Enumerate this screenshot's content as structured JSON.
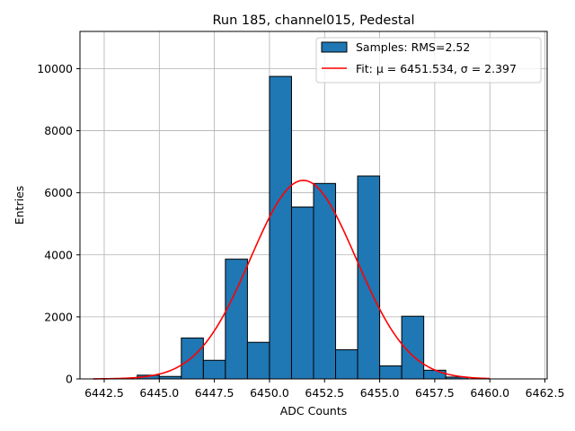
{
  "chart_data": {
    "type": "bar",
    "title": "Run 185, channel015, Pedestal",
    "xlabel": "ADC Counts",
    "ylabel": "Entries",
    "xlim": [
      6441.4,
      6462.6
    ],
    "ylim": [
      0,
      11200
    ],
    "grid": true,
    "legend_position": "top-right",
    "x_ticks": [
      6442.5,
      6445.0,
      6447.5,
      6450.0,
      6452.5,
      6455.0,
      6457.5,
      6460.0,
      6462.5
    ],
    "x_tick_labels": [
      "6442.5",
      "6445.0",
      "6447.5",
      "6450.0",
      "6452.5",
      "6455.0",
      "6457.5",
      "6460.0",
      "6462.5"
    ],
    "y_ticks": [
      0,
      2000,
      4000,
      6000,
      8000,
      10000
    ],
    "y_tick_labels": [
      "0",
      "2000",
      "4000",
      "6000",
      "8000",
      "10000"
    ],
    "bins": [
      {
        "left": 6444.0,
        "right": 6445.0,
        "value": 120
      },
      {
        "left": 6445.0,
        "right": 6446.0,
        "value": 80
      },
      {
        "left": 6446.0,
        "right": 6447.0,
        "value": 1320
      },
      {
        "left": 6447.0,
        "right": 6448.0,
        "value": 600
      },
      {
        "left": 6448.0,
        "right": 6449.0,
        "value": 3860
      },
      {
        "left": 6449.0,
        "right": 6450.0,
        "value": 1180
      },
      {
        "left": 6450.0,
        "right": 6451.0,
        "value": 9750
      },
      {
        "left": 6451.0,
        "right": 6452.0,
        "value": 5540
      },
      {
        "left": 6452.0,
        "right": 6453.0,
        "value": 6300
      },
      {
        "left": 6453.0,
        "right": 6454.0,
        "value": 940
      },
      {
        "left": 6454.0,
        "right": 6455.0,
        "value": 6540
      },
      {
        "left": 6455.0,
        "right": 6456.0,
        "value": 420
      },
      {
        "left": 6456.0,
        "right": 6457.0,
        "value": 2020
      },
      {
        "left": 6457.0,
        "right": 6458.0,
        "value": 280
      },
      {
        "left": 6458.0,
        "right": 6459.0,
        "value": 60
      }
    ],
    "fit": {
      "mu": 6451.534,
      "sigma": 2.397,
      "amplitude": 6400,
      "x_range": [
        6442.0,
        6460.0
      ]
    },
    "series": [
      {
        "name": "Samples: RMS=2.52",
        "kind": "histogram",
        "color": "#1f77b4"
      },
      {
        "name": "Fit: μ = 6451.534, σ = 2.397",
        "kind": "line",
        "color": "#ff0000"
      }
    ]
  }
}
